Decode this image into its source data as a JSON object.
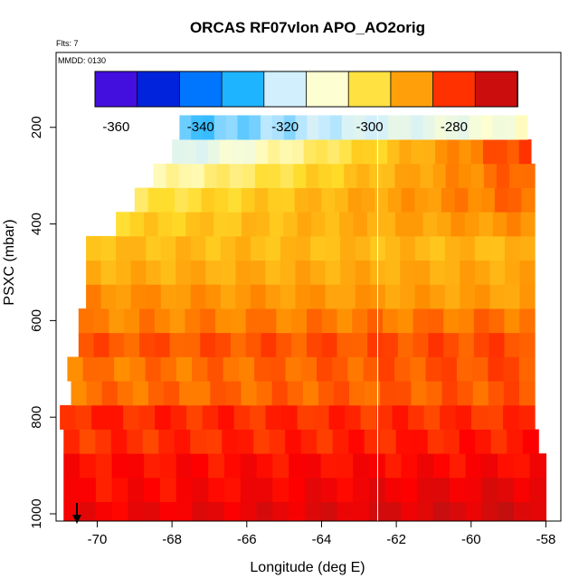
{
  "chart_data": {
    "type": "heatmap",
    "title": "ORCAS RF07vlon APO_AO2orig",
    "corner_labels": {
      "flights": "Flts: 7",
      "date": "MMDD: 0130"
    },
    "xlabel": "Longitude (deg E)",
    "ylabel": "PSXC (mbar)",
    "xlim": [
      -71.1,
      -57.6
    ],
    "ylim": [
      1015,
      45
    ],
    "y_reversed": true,
    "x_ticks": [
      "-70",
      "-68",
      "-66",
      "-64",
      "-62",
      "-60",
      "-58"
    ],
    "y_ticks": [
      "200",
      "400",
      "600",
      "800",
      "1000"
    ],
    "colorbar": {
      "range": [
        -365,
        -265
      ],
      "tick_values": [
        -360,
        -340,
        -320,
        -300,
        -280
      ],
      "tick_labels": [
        "-360",
        "-340",
        "-320",
        "-300",
        "-280"
      ],
      "color_stops": [
        "#7a1cf0",
        "#0000c8",
        "#0064ff",
        "#00aaff",
        "#cfeeff",
        "#ffffcf",
        "#ffdc28",
        "#ff8c00",
        "#ff0000",
        "#a01818"
      ]
    },
    "divider_longitude": -62.5,
    "layers": [
      {
        "p": 1000,
        "x0": -70.9,
        "x1": -58.0,
        "v0": -275,
        "v1": -271
      },
      {
        "p": 950,
        "x0": -70.9,
        "x1": -58.0,
        "v0": -277,
        "v1": -273
      },
      {
        "p": 900,
        "x0": -70.9,
        "x1": -58.0,
        "v0": -277,
        "v1": -276
      },
      {
        "p": 850,
        "x0": -70.9,
        "x1": -58.2,
        "v0": -280,
        "v1": -278
      },
      {
        "p": 800,
        "x0": -71.0,
        "x1": -58.3,
        "v0": -279,
        "v1": -280
      },
      {
        "p": 750,
        "x0": -70.7,
        "x1": -58.3,
        "v0": -285,
        "v1": -283
      },
      {
        "p": 700,
        "x0": -70.8,
        "x1": -58.3,
        "v0": -286,
        "v1": -282
      },
      {
        "p": 650,
        "x0": -70.5,
        "x1": -58.3,
        "v0": -283,
        "v1": -282
      },
      {
        "p": 600,
        "x0": -70.5,
        "x1": -58.3,
        "v0": -287,
        "v1": -285
      },
      {
        "p": 550,
        "x0": -70.3,
        "x1": -58.3,
        "v0": -288,
        "v1": -290
      },
      {
        "p": 500,
        "x0": -70.3,
        "x1": -58.3,
        "v0": -292,
        "v1": -291
      },
      {
        "p": 450,
        "x0": -70.3,
        "x1": -58.3,
        "v0": -294,
        "v1": -293
      },
      {
        "p": 400,
        "x0": -69.5,
        "x1": -58.3,
        "v0": -297,
        "v1": -288
      },
      {
        "p": 350,
        "x0": -69.0,
        "x1": -58.3,
        "v0": -301,
        "v1": -284
      },
      {
        "p": 300,
        "x0": -68.5,
        "x1": -58.3,
        "v0": -308,
        "v1": -283
      },
      {
        "p": 250,
        "x0": -68.0,
        "x1": -58.4,
        "v0": -318,
        "v1": -280
      },
      {
        "p": 200,
        "x0": -67.8,
        "x1": -58.5,
        "v0": -328,
        "v1": -310
      }
    ]
  }
}
